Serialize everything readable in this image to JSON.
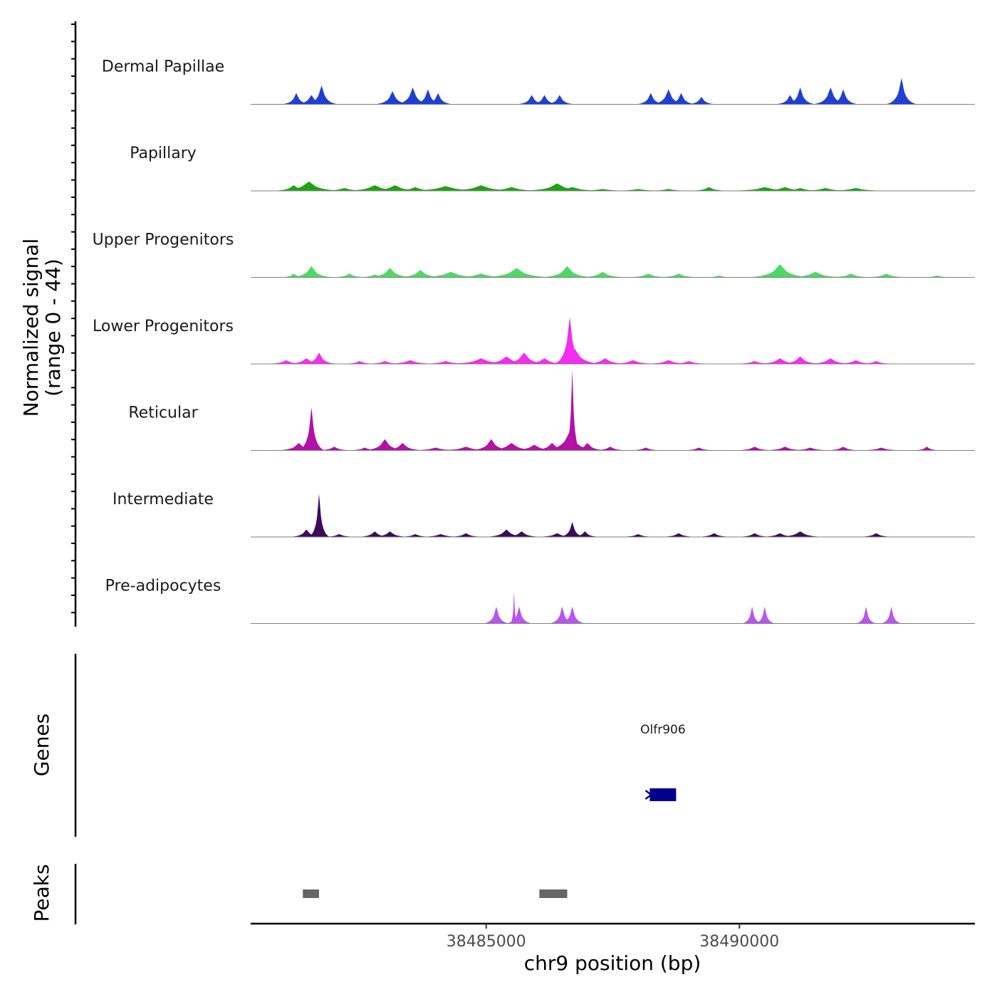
{
  "chart_data": {
    "type": "area",
    "title": "",
    "ylabel": "Normalized signal",
    "ylabel_range": "(range 0 - 44)",
    "xlabel": "chr9 position (bp)",
    "xlim": [
      38480350,
      38494650
    ],
    "ylim": [
      0,
      44
    ],
    "x_ticks": [
      38485000,
      38490000
    ],
    "x_tick_labels": [
      "38485000",
      "38490000"
    ],
    "series": [
      {
        "name": "Dermal Papillae",
        "color": "#1f3fd4",
        "peaks": [
          [
            38481250,
            6,
            12
          ],
          [
            38481550,
            5,
            14
          ],
          [
            38481750,
            10,
            13
          ],
          [
            38483150,
            7,
            14
          ],
          [
            38483550,
            9,
            14
          ],
          [
            38483850,
            8,
            12
          ],
          [
            38484050,
            6,
            12
          ],
          [
            38485900,
            5,
            12
          ],
          [
            38486150,
            5,
            12
          ],
          [
            38486450,
            5,
            12
          ],
          [
            38488250,
            6,
            12
          ],
          [
            38488600,
            8,
            14
          ],
          [
            38488850,
            6,
            12
          ],
          [
            38489250,
            4,
            12
          ],
          [
            38491000,
            5,
            12
          ],
          [
            38491200,
            9,
            12
          ],
          [
            38491800,
            9,
            14
          ],
          [
            38492050,
            8,
            12
          ],
          [
            38493200,
            14,
            12
          ]
        ]
      },
      {
        "name": "Papillary",
        "color": "#1ea313",
        "peaks": [
          [
            38481200,
            3,
            18
          ],
          [
            38481500,
            5,
            28
          ],
          [
            38482200,
            1.5,
            24
          ],
          [
            38482800,
            3,
            28
          ],
          [
            38483200,
            3,
            26
          ],
          [
            38483600,
            2,
            22
          ],
          [
            38484200,
            2.5,
            40
          ],
          [
            38484900,
            3,
            34
          ],
          [
            38485500,
            2,
            30
          ],
          [
            38486400,
            4,
            30
          ],
          [
            38486700,
            2,
            30
          ],
          [
            38487300,
            1,
            28
          ],
          [
            38488000,
            1,
            26
          ],
          [
            38488600,
            1,
            22
          ],
          [
            38489400,
            2,
            18
          ],
          [
            38490500,
            2,
            34
          ],
          [
            38490900,
            2,
            26
          ],
          [
            38491200,
            1.5,
            22
          ],
          [
            38491700,
            1.5,
            26
          ],
          [
            38492300,
            1.5,
            30
          ]
        ]
      },
      {
        "name": "Upper Progenitors",
        "color": "#4ed866",
        "peaks": [
          [
            38481200,
            2,
            12
          ],
          [
            38481550,
            6,
            18
          ],
          [
            38482300,
            2,
            16
          ],
          [
            38482800,
            1.5,
            16
          ],
          [
            38483100,
            5,
            20
          ],
          [
            38483700,
            4,
            20
          ],
          [
            38484300,
            3,
            30
          ],
          [
            38484900,
            2,
            30
          ],
          [
            38485600,
            5,
            30
          ],
          [
            38486600,
            6,
            22
          ],
          [
            38487300,
            3,
            20
          ],
          [
            38488200,
            2,
            20
          ],
          [
            38488800,
            2,
            20
          ],
          [
            38489600,
            1,
            14
          ],
          [
            38490800,
            7,
            26
          ],
          [
            38491500,
            3,
            26
          ],
          [
            38492200,
            2,
            20
          ],
          [
            38492900,
            2,
            20
          ],
          [
            38493900,
            1,
            14
          ]
        ]
      },
      {
        "name": "Lower Progenitors",
        "color": "#f32cef",
        "peaks": [
          [
            38481050,
            2,
            18
          ],
          [
            38481450,
            3,
            18
          ],
          [
            38481700,
            6,
            14
          ],
          [
            38482500,
            1.5,
            16
          ],
          [
            38483000,
            1.5,
            18
          ],
          [
            38483500,
            2,
            24
          ],
          [
            38484200,
            1.5,
            24
          ],
          [
            38484900,
            3,
            30
          ],
          [
            38485400,
            4,
            24
          ],
          [
            38485750,
            6,
            20
          ],
          [
            38486150,
            3,
            20
          ],
          [
            38486650,
            25,
            12
          ],
          [
            38486750,
            8,
            22
          ],
          [
            38487350,
            3,
            20
          ],
          [
            38487900,
            2,
            22
          ],
          [
            38488600,
            2,
            22
          ],
          [
            38489000,
            1.5,
            20
          ],
          [
            38490300,
            1.5,
            20
          ],
          [
            38490800,
            3,
            20
          ],
          [
            38491200,
            4,
            18
          ],
          [
            38491800,
            3,
            20
          ],
          [
            38492300,
            2,
            20
          ],
          [
            38492700,
            1.5,
            18
          ]
        ]
      },
      {
        "name": "Reticular",
        "color": "#b212a7",
        "peaks": [
          [
            38481300,
            4,
            18
          ],
          [
            38481550,
            23,
            10
          ],
          [
            38482000,
            2,
            16
          ],
          [
            38482600,
            1.5,
            16
          ],
          [
            38483000,
            6,
            18
          ],
          [
            38483350,
            4,
            18
          ],
          [
            38484000,
            1.5,
            24
          ],
          [
            38484600,
            2,
            26
          ],
          [
            38485100,
            6,
            18
          ],
          [
            38485500,
            4,
            24
          ],
          [
            38485950,
            3,
            22
          ],
          [
            38486300,
            4,
            18
          ],
          [
            38486700,
            43,
            6
          ],
          [
            38486650,
            10,
            22
          ],
          [
            38487000,
            4,
            16
          ],
          [
            38487450,
            2,
            16
          ],
          [
            38488150,
            1.5,
            16
          ],
          [
            38489200,
            1.5,
            16
          ],
          [
            38490300,
            2,
            18
          ],
          [
            38490900,
            2,
            20
          ],
          [
            38491400,
            1.5,
            20
          ],
          [
            38492050,
            2,
            16
          ],
          [
            38492800,
            1.5,
            20
          ],
          [
            38493700,
            2,
            12
          ]
        ]
      },
      {
        "name": "Intermediate",
        "color": "#3d0a59",
        "peaks": [
          [
            38481450,
            4,
            14
          ],
          [
            38481700,
            23,
            8
          ],
          [
            38482100,
            1.5,
            16
          ],
          [
            38482800,
            3,
            14
          ],
          [
            38483100,
            3,
            16
          ],
          [
            38483600,
            1.5,
            16
          ],
          [
            38484100,
            1.5,
            20
          ],
          [
            38484600,
            2,
            16
          ],
          [
            38485400,
            4,
            18
          ],
          [
            38485700,
            3,
            16
          ],
          [
            38486400,
            2,
            18
          ],
          [
            38486700,
            8,
            10
          ],
          [
            38486950,
            3,
            12
          ],
          [
            38488000,
            1.5,
            16
          ],
          [
            38488800,
            2,
            16
          ],
          [
            38489500,
            2,
            16
          ],
          [
            38490300,
            2,
            16
          ],
          [
            38490800,
            2,
            18
          ],
          [
            38491200,
            3,
            20
          ],
          [
            38492700,
            2,
            16
          ]
        ]
      },
      {
        "name": "Pre-adipocytes",
        "color": "#b954f0",
        "peaks": [
          [
            38485200,
            9,
            10
          ],
          [
            38485650,
            9,
            10
          ],
          [
            38485550,
            17,
            3
          ],
          [
            38486500,
            9,
            10
          ],
          [
            38486700,
            9,
            10
          ],
          [
            38490250,
            9,
            8
          ],
          [
            38490500,
            9,
            8
          ],
          [
            38492500,
            9,
            8
          ],
          [
            38493000,
            9,
            8
          ]
        ]
      }
    ],
    "genes": {
      "label": "Genes",
      "items": [
        {
          "name": "Olfr906",
          "start": 38488230,
          "end": 38488750,
          "strand": "-",
          "color": "#00008b"
        }
      ]
    },
    "peak_regions": {
      "label": "Peaks",
      "color": "#666666",
      "items": [
        [
          38481380,
          38481700
        ],
        [
          38486050,
          38486600
        ]
      ]
    }
  }
}
